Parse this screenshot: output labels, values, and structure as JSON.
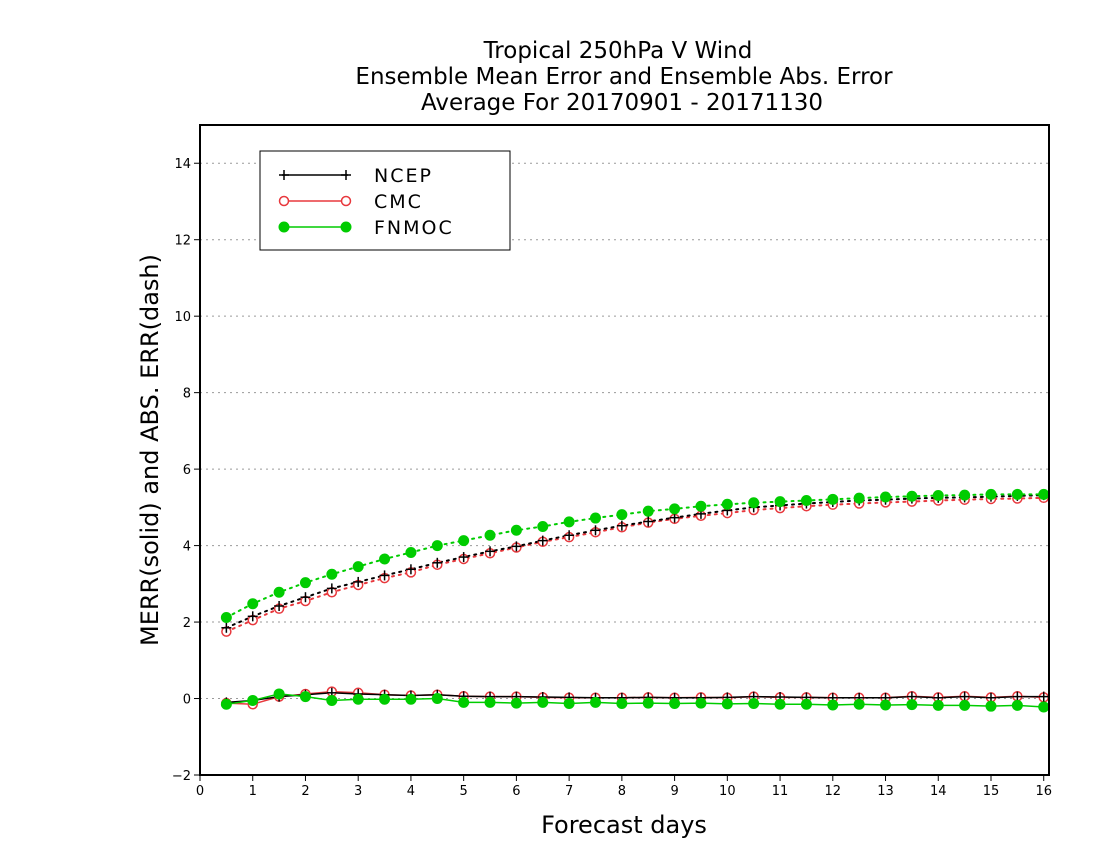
{
  "chart_data": {
    "type": "line",
    "title": [
      "Tropical 250hPa V Wind",
      "Ensemble Mean Error and Ensemble Abs. Error",
      "Average For 20170901 - 20171130"
    ],
    "xlabel": "Forecast days",
    "ylabel": "MERR(solid) and ABS. ERR(dash)",
    "xlim": [
      0,
      16.1
    ],
    "ylim": [
      -2,
      15
    ],
    "xticks": [
      0,
      1,
      2,
      3,
      4,
      5,
      6,
      7,
      8,
      9,
      10,
      11,
      12,
      13,
      14,
      15,
      16
    ],
    "yticks": [
      -2,
      0,
      2,
      4,
      6,
      8,
      10,
      12,
      14
    ],
    "grid": "horizontal dotted",
    "legend_position": "top-left",
    "x": [
      0.5,
      1,
      1.5,
      2,
      2.5,
      3,
      3.5,
      4,
      4.5,
      5,
      5.5,
      6,
      6.5,
      7,
      7.5,
      8,
      8.5,
      9,
      9.5,
      10,
      10.5,
      11,
      11.5,
      12,
      12.5,
      13,
      13.5,
      14,
      14.5,
      15,
      15.5,
      16
    ],
    "series": [
      {
        "name": "NCEP",
        "color": "#000000",
        "marker": "plus",
        "merr": [
          -0.1,
          -0.05,
          0.05,
          0.1,
          0.15,
          0.12,
          0.1,
          0.08,
          0.1,
          0.06,
          0.05,
          0.05,
          0.04,
          0.03,
          0.02,
          0.02,
          0.03,
          0.02,
          0.02,
          0.03,
          0.05,
          0.04,
          0.03,
          0.02,
          0.02,
          0.02,
          0.05,
          0.02,
          0.05,
          0.02,
          0.05,
          0.05
        ],
        "abs_err": [
          1.85,
          2.15,
          2.42,
          2.65,
          2.88,
          3.05,
          3.22,
          3.38,
          3.55,
          3.7,
          3.85,
          3.98,
          4.13,
          4.27,
          4.4,
          4.52,
          4.63,
          4.73,
          4.83,
          4.92,
          5.0,
          5.05,
          5.1,
          5.14,
          5.18,
          5.2,
          5.23,
          5.25,
          5.26,
          5.28,
          5.3,
          5.32
        ]
      },
      {
        "name": "CMC",
        "color": "#e8383d",
        "marker": "open-circle",
        "merr": [
          -0.12,
          -0.15,
          0.05,
          0.12,
          0.18,
          0.15,
          0.1,
          0.08,
          0.1,
          0.06,
          0.05,
          0.05,
          0.03,
          0.02,
          0.02,
          0.02,
          0.03,
          0.02,
          0.03,
          0.02,
          0.05,
          0.03,
          0.03,
          0.02,
          0.02,
          0.02,
          0.06,
          0.03,
          0.06,
          0.03,
          0.06,
          0.03
        ],
        "abs_err": [
          1.75,
          2.05,
          2.35,
          2.55,
          2.78,
          2.97,
          3.15,
          3.3,
          3.5,
          3.65,
          3.8,
          3.95,
          4.1,
          4.22,
          4.35,
          4.48,
          4.6,
          4.7,
          4.78,
          4.85,
          4.93,
          4.98,
          5.03,
          5.07,
          5.1,
          5.13,
          5.15,
          5.18,
          5.2,
          5.22,
          5.23,
          5.25
        ]
      },
      {
        "name": "FNMOC",
        "color": "#00cc00",
        "marker": "filled-circle",
        "merr": [
          -0.15,
          -0.05,
          0.12,
          0.05,
          -0.05,
          -0.02,
          -0.02,
          -0.02,
          0.0,
          -0.1,
          -0.1,
          -0.12,
          -0.1,
          -0.13,
          -0.1,
          -0.13,
          -0.12,
          -0.13,
          -0.12,
          -0.14,
          -0.13,
          -0.15,
          -0.15,
          -0.17,
          -0.15,
          -0.17,
          -0.16,
          -0.18,
          -0.18,
          -0.2,
          -0.18,
          -0.22
        ],
        "abs_err": [
          2.12,
          2.48,
          2.78,
          3.03,
          3.25,
          3.45,
          3.65,
          3.82,
          4.0,
          4.13,
          4.27,
          4.4,
          4.5,
          4.62,
          4.72,
          4.81,
          4.9,
          4.96,
          5.03,
          5.08,
          5.12,
          5.15,
          5.18,
          5.21,
          5.24,
          5.27,
          5.29,
          5.31,
          5.32,
          5.34,
          5.34,
          5.34
        ]
      }
    ]
  }
}
